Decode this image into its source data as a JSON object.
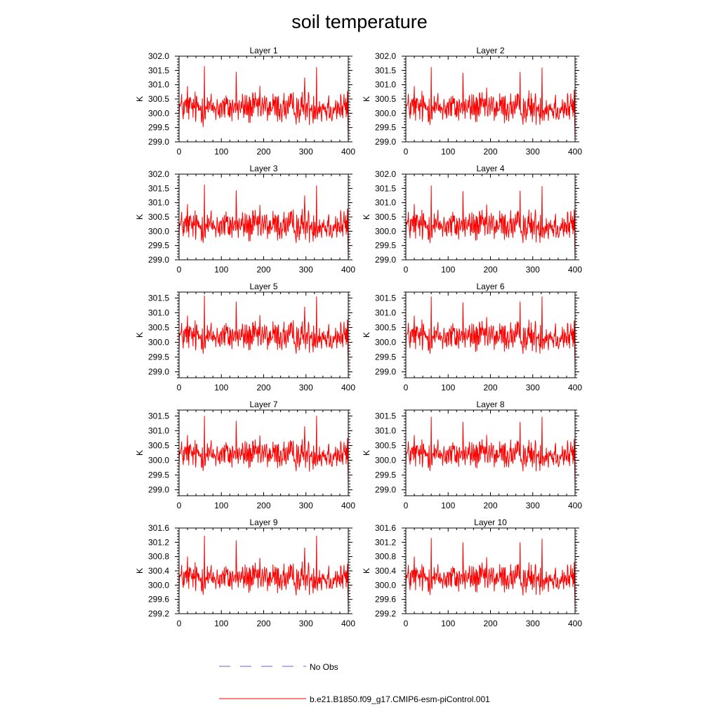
{
  "chart_data": {
    "type": "line",
    "title": "soil temperature",
    "n_points": 401,
    "x_ticks": [
      0,
      100,
      200,
      300,
      400
    ],
    "xlim": [
      0,
      400
    ],
    "legend": [
      {
        "label": "No Obs",
        "color": "#6666cc",
        "style": "dashed"
      },
      {
        "label": "b.e21.B1850.f09_g17.CMIP6-esm-piControl.001",
        "color": "#ff0000",
        "style": "solid"
      }
    ],
    "panels": [
      {
        "title": "Layer 1",
        "ylabel": "K",
        "ylim": [
          299.0,
          302.0
        ],
        "yticks": [
          "302.0",
          "301.5",
          "301.0",
          "300.5",
          "300.0",
          "299.5",
          "299.0"
        ],
        "mean": 300.2,
        "amp": 1.0,
        "end_value": 299.05,
        "spikes": [
          [
            60,
            301.65
          ],
          [
            135,
            301.45
          ],
          [
            325,
            301.62
          ],
          [
            297,
            301.25
          ],
          [
            20,
            300.95
          ]
        ]
      },
      {
        "title": "Layer 2",
        "ylabel": "K",
        "ylim": [
          299.0,
          302.0
        ],
        "yticks": [
          "302.0",
          "301.5",
          "301.0",
          "300.5",
          "300.0",
          "299.5",
          "299.0"
        ],
        "mean": 300.2,
        "amp": 1.0,
        "end_value": 299.05,
        "spikes": [
          [
            60,
            301.62
          ],
          [
            135,
            301.42
          ],
          [
            322,
            301.6
          ],
          [
            270,
            301.45
          ],
          [
            20,
            300.95
          ]
        ]
      },
      {
        "title": "Layer 3",
        "ylabel": "K",
        "ylim": [
          299.0,
          302.0
        ],
        "yticks": [
          "302.0",
          "301.5",
          "301.0",
          "300.5",
          "300.0",
          "299.5",
          "299.0"
        ],
        "mean": 300.2,
        "amp": 1.0,
        "end_value": 299.05,
        "spikes": [
          [
            60,
            301.63
          ],
          [
            135,
            301.43
          ],
          [
            325,
            301.6
          ],
          [
            297,
            301.25
          ],
          [
            20,
            300.95
          ]
        ]
      },
      {
        "title": "Layer 4",
        "ylabel": "K",
        "ylim": [
          299.0,
          302.0
        ],
        "yticks": [
          "302.0",
          "301.5",
          "301.0",
          "300.5",
          "300.0",
          "299.5",
          "299.0"
        ],
        "mean": 300.2,
        "amp": 1.0,
        "end_value": 299.05,
        "spikes": [
          [
            60,
            301.6
          ],
          [
            135,
            301.4
          ],
          [
            322,
            301.58
          ],
          [
            270,
            301.42
          ],
          [
            20,
            300.95
          ]
        ]
      },
      {
        "title": "Layer 5",
        "ylabel": "K",
        "ylim": [
          298.8,
          301.7
        ],
        "yticks": [
          "301.5",
          "301.0",
          "300.5",
          "300.0",
          "299.5",
          "299.0"
        ],
        "mean": 300.2,
        "amp": 0.95,
        "end_value": 299.1,
        "spikes": [
          [
            60,
            301.58
          ],
          [
            135,
            301.38
          ],
          [
            325,
            301.55
          ],
          [
            297,
            301.2
          ],
          [
            20,
            300.9
          ]
        ]
      },
      {
        "title": "Layer 6",
        "ylabel": "K",
        "ylim": [
          298.8,
          301.7
        ],
        "yticks": [
          "301.5",
          "301.0",
          "300.5",
          "300.0",
          "299.5",
          "299.0"
        ],
        "mean": 300.2,
        "amp": 0.95,
        "end_value": 299.1,
        "spikes": [
          [
            60,
            301.55
          ],
          [
            135,
            301.35
          ],
          [
            322,
            301.55
          ],
          [
            270,
            301.38
          ],
          [
            20,
            300.9
          ]
        ]
      },
      {
        "title": "Layer 7",
        "ylabel": "K",
        "ylim": [
          298.8,
          301.7
        ],
        "yticks": [
          "301.5",
          "301.0",
          "300.5",
          "300.0",
          "299.5",
          "299.0"
        ],
        "mean": 300.2,
        "amp": 0.9,
        "end_value": 299.15,
        "spikes": [
          [
            60,
            301.5
          ],
          [
            135,
            301.33
          ],
          [
            325,
            301.5
          ],
          [
            297,
            301.15
          ],
          [
            20,
            300.85
          ]
        ]
      },
      {
        "title": "Layer 8",
        "ylabel": "K",
        "ylim": [
          298.8,
          301.7
        ],
        "yticks": [
          "301.5",
          "301.0",
          "300.5",
          "300.0",
          "299.5",
          "299.0"
        ],
        "mean": 300.2,
        "amp": 0.9,
        "end_value": 299.15,
        "spikes": [
          [
            60,
            301.47
          ],
          [
            135,
            301.3
          ],
          [
            322,
            301.47
          ],
          [
            270,
            301.3
          ],
          [
            20,
            300.85
          ]
        ]
      },
      {
        "title": "Layer 9",
        "ylabel": "K",
        "ylim": [
          299.2,
          301.6
        ],
        "yticks": [
          "301.6",
          "301.2",
          "300.8",
          "300.4",
          "300.0",
          "299.6",
          "299.2"
        ],
        "mean": 300.2,
        "amp": 0.75,
        "end_value": 299.35,
        "spikes": [
          [
            60,
            301.38
          ],
          [
            135,
            301.25
          ],
          [
            325,
            301.38
          ],
          [
            297,
            301.05
          ],
          [
            20,
            300.8
          ]
        ]
      },
      {
        "title": "Layer 10",
        "ylabel": "K",
        "ylim": [
          299.2,
          301.6
        ],
        "yticks": [
          "301.6",
          "301.2",
          "300.8",
          "300.4",
          "300.0",
          "299.6",
          "299.2"
        ],
        "mean": 300.2,
        "amp": 0.75,
        "end_value": 299.35,
        "spikes": [
          [
            60,
            301.32
          ],
          [
            135,
            301.2
          ],
          [
            322,
            301.3
          ],
          [
            270,
            301.2
          ],
          [
            20,
            300.8
          ]
        ]
      }
    ]
  }
}
